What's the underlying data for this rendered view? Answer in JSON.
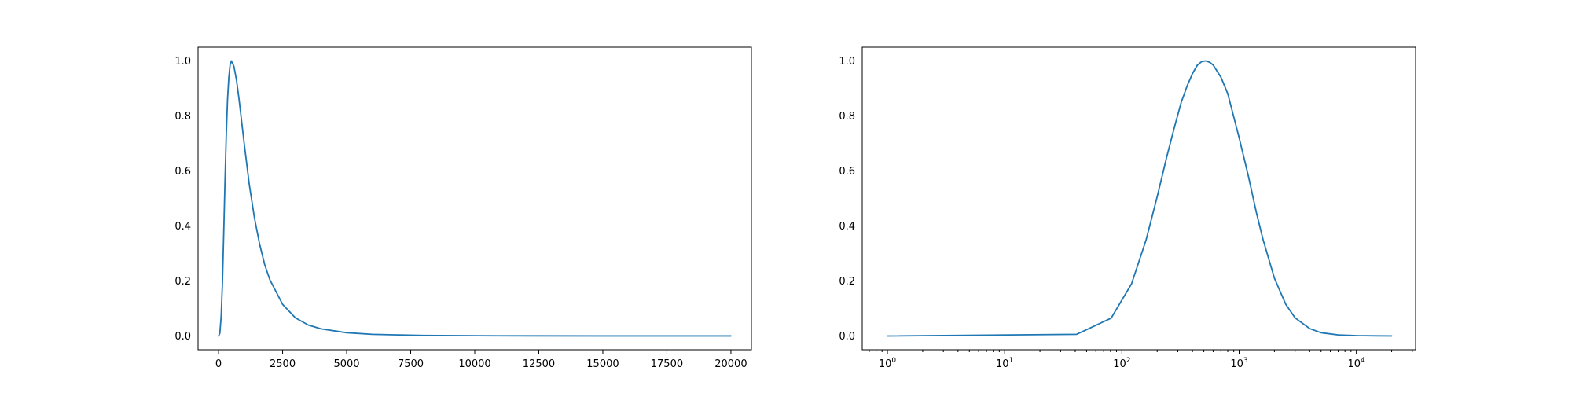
{
  "chart_data": [
    {
      "type": "line",
      "title": "",
      "xlabel": "",
      "ylabel": "",
      "xscale": "linear",
      "xlim": [
        -800,
        20800
      ],
      "ylim": [
        -0.05,
        1.05
      ],
      "grid": false,
      "x_ticks": [
        0,
        2500,
        5000,
        7500,
        10000,
        12500,
        15000,
        17500,
        20000
      ],
      "x_tick_labels": [
        "0",
        "2500",
        "5000",
        "7500",
        "10000",
        "12500",
        "15000",
        "17500",
        "20000"
      ],
      "y_ticks": [
        0.0,
        0.2,
        0.4,
        0.6,
        0.8,
        1.0
      ],
      "y_tick_labels": [
        "0.0",
        "0.2",
        "0.4",
        "0.6",
        "0.8",
        "1.0"
      ],
      "series": [
        {
          "color": "#1f77b4",
          "x": [
            0,
            50,
            100,
            150,
            200,
            250,
            300,
            350,
            400,
            450,
            500,
            600,
            700,
            800,
            900,
            1000,
            1200,
            1400,
            1600,
            1800,
            2000,
            2500,
            3000,
            3500,
            4000,
            5000,
            6000,
            7000,
            8000,
            10000,
            12000,
            15000,
            20000
          ],
          "y": [
            0.0,
            0.01,
            0.07,
            0.19,
            0.37,
            0.56,
            0.73,
            0.86,
            0.94,
            0.985,
            1.0,
            0.98,
            0.93,
            0.86,
            0.78,
            0.7,
            0.55,
            0.43,
            0.335,
            0.26,
            0.205,
            0.115,
            0.066,
            0.04,
            0.026,
            0.012,
            0.006,
            0.004,
            0.002,
            0.001,
            0.0005,
            0.0002,
            0.0001
          ]
        }
      ]
    },
    {
      "type": "line",
      "title": "",
      "xlabel": "",
      "ylabel": "",
      "xscale": "log",
      "xlim": [
        0.61,
        32000
      ],
      "ylim": [
        -0.05,
        1.05
      ],
      "grid": false,
      "x_ticks": [
        1,
        10,
        100,
        1000,
        10000
      ],
      "x_tick_labels": [
        {
          "base": "10",
          "exp": "0"
        },
        {
          "base": "10",
          "exp": "1"
        },
        {
          "base": "10",
          "exp": "2"
        },
        {
          "base": "10",
          "exp": "3"
        },
        {
          "base": "10",
          "exp": "4"
        }
      ],
      "y_ticks": [
        0.0,
        0.2,
        0.4,
        0.6,
        0.8,
        1.0
      ],
      "y_tick_labels": [
        "0.0",
        "0.2",
        "0.4",
        "0.6",
        "0.8",
        "1.0"
      ],
      "series": [
        {
          "color": "#1f77b4",
          "x": [
            1,
            41,
            81,
            121,
            161,
            201,
            241,
            281,
            321,
            361,
            401,
            441,
            481,
            521,
            561,
            601,
            701,
            801,
            1001,
            1201,
            1401,
            1601,
            2001,
            2501,
            3001,
            4001,
            5001,
            7001,
            10001,
            15001,
            20000
          ],
          "y": [
            0.0,
            0.006,
            0.065,
            0.19,
            0.35,
            0.51,
            0.65,
            0.76,
            0.85,
            0.91,
            0.955,
            0.985,
            0.998,
            1.0,
            0.995,
            0.985,
            0.94,
            0.88,
            0.72,
            0.58,
            0.45,
            0.35,
            0.21,
            0.115,
            0.066,
            0.027,
            0.012,
            0.004,
            0.0015,
            0.0005,
            0.0002
          ]
        }
      ]
    }
  ]
}
